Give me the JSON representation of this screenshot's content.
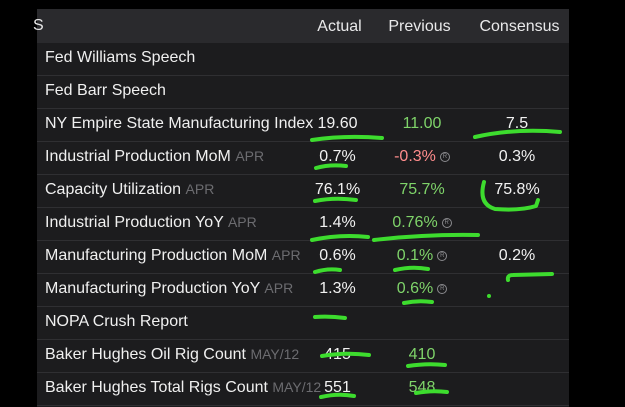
{
  "header": {
    "corner": "S",
    "actual": "Actual",
    "previous": "Previous",
    "consensus": "Consensus"
  },
  "rows": [
    {
      "name": "Fed Williams Speech",
      "period": "",
      "actual": "",
      "previous": "",
      "consensus": ""
    },
    {
      "name": "Fed Barr Speech",
      "period": "",
      "actual": "",
      "previous": "",
      "consensus": ""
    },
    {
      "name": "NY Empire State Manufacturing Index",
      "period": "",
      "actual": "19.60",
      "previous": "11.00",
      "consensus": "7.5"
    },
    {
      "name": "Industrial Production MoM",
      "period": "APR",
      "actual": "0.7%",
      "previous": "-0.3%",
      "consensus": "0.3%"
    },
    {
      "name": "Capacity Utilization",
      "period": "APR",
      "actual": "76.1%",
      "previous": "75.7%",
      "consensus": "75.8%"
    },
    {
      "name": "Industrial Production YoY",
      "period": "APR",
      "actual": "1.4%",
      "previous": "0.76%",
      "consensus": ""
    },
    {
      "name": "Manufacturing Production MoM",
      "period": "APR",
      "actual": "0.6%",
      "previous": "0.1%",
      "consensus": "0.2%"
    },
    {
      "name": "Manufacturing Production YoY",
      "period": "APR",
      "actual": "1.3%",
      "previous": "0.6%",
      "consensus": ""
    },
    {
      "name": "NOPA Crush Report",
      "period": "",
      "actual": "",
      "previous": "",
      "consensus": ""
    },
    {
      "name": "Baker Hughes Oil Rig Count",
      "period": "MAY/12",
      "actual": "415",
      "previous": "410",
      "consensus": ""
    },
    {
      "name": "Baker Hughes Total Rigs Count",
      "period": "MAY/12",
      "actual": "551",
      "previous": "548",
      "consensus": ""
    }
  ],
  "colors": {
    "positive": "#7fd46a",
    "negative": "#ff8c8c",
    "annotation": "#3ddc2e",
    "background": "#1c1c1e"
  },
  "icons": {
    "revision": "revision-icon"
  }
}
